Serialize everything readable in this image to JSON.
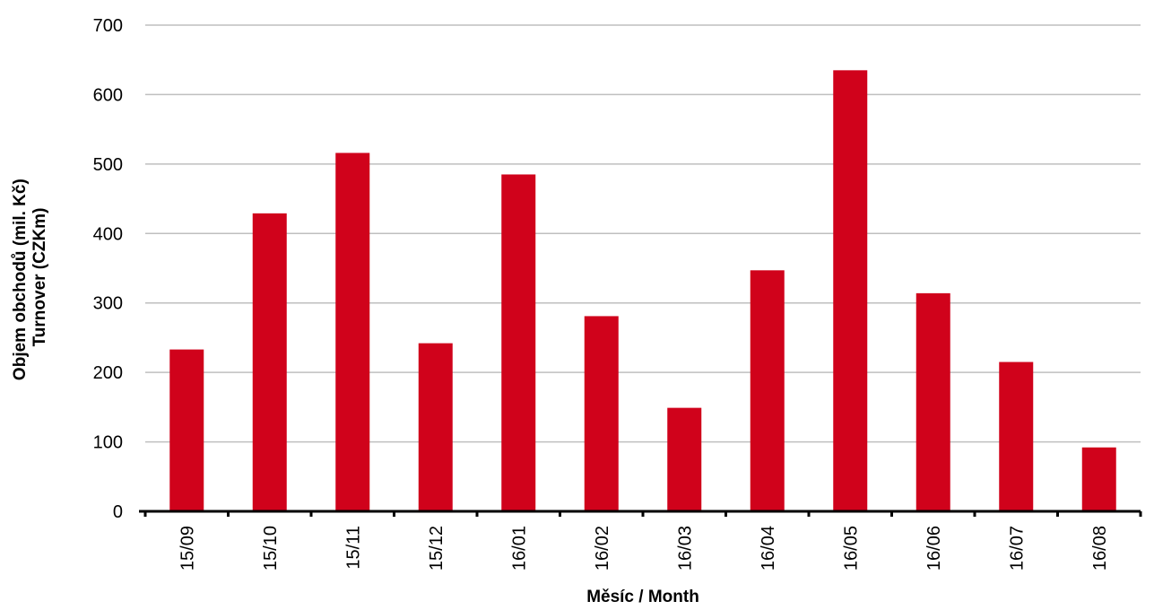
{
  "chart_data": {
    "type": "bar",
    "title": "",
    "xlabel": "Měsíc / Month",
    "ylabel": [
      "Objem obchodů (mil. Kč)",
      "Turnover (CZKm)"
    ],
    "categories": [
      "15/09",
      "15/10",
      "15/11",
      "15/12",
      "16/01",
      "16/02",
      "16/03",
      "16/04",
      "16/05",
      "16/06",
      "16/07",
      "16/08"
    ],
    "values": [
      233,
      429,
      516,
      242,
      485,
      281,
      149,
      347,
      635,
      314,
      215,
      92
    ],
    "ylim": [
      0,
      700
    ],
    "yticks": [
      0,
      100,
      200,
      300,
      400,
      500,
      600,
      700
    ],
    "grid": true,
    "bar_color": "#d0021b",
    "grid_color": "#bfbfbf",
    "axis_color": "#000000"
  }
}
